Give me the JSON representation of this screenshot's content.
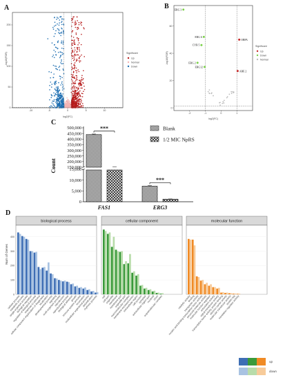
{
  "chart_data": [
    {
      "panel": "A",
      "type": "scatter",
      "xlabel": "log2(FC)",
      "ylabel": "-log10(FDR)",
      "xlim": [
        -15,
        15
      ],
      "ylim": [
        0,
        230
      ],
      "xticks": [
        "-10",
        "-5",
        "0",
        "5",
        "10"
      ],
      "yticks": [
        "0",
        "50",
        "100",
        "150",
        "200"
      ],
      "vlines": [
        -1,
        1
      ],
      "hline": 1.3,
      "legend": {
        "title": "Significant",
        "entries": [
          "Up",
          "Normal",
          "Down"
        ],
        "position": "right"
      },
      "colors": {
        "Up": "#b71c1c",
        "Normal": "#f4b4b4",
        "Down": "#1f6fb2"
      }
    },
    {
      "panel": "B",
      "type": "scatter",
      "xlabel": "log2(FC)",
      "ylabel": "-log10(FDR)",
      "xlim": [
        -3,
        2
      ],
      "ylim": [
        -2,
        75
      ],
      "xticks": [
        "-2",
        "-1",
        "0",
        "1"
      ],
      "yticks": [
        "0",
        "20",
        "40",
        "60"
      ],
      "vlines": [
        -1,
        1
      ],
      "hline": 1.3,
      "legend": {
        "title": "Significant",
        "entries": [
          "Up",
          "Down",
          "Normal"
        ],
        "position": "right"
      },
      "colors": {
        "Up": "#c62828",
        "Down": "#7bd14a",
        "Normal": "#bdbdbd"
      },
      "points": [
        {
          "label": "ERG 3",
          "x": -2.4,
          "y": 72,
          "group": "Down"
        },
        {
          "label": "ERG 6",
          "x": -1.1,
          "y": 52,
          "group": "Down"
        },
        {
          "label": "CYB 5",
          "x": -1.25,
          "y": 46,
          "group": "Down"
        },
        {
          "label": "ERG 2",
          "x": -1.5,
          "y": 33,
          "group": "Down"
        },
        {
          "label": "ERG12",
          "x": -1.05,
          "y": 30,
          "group": "Down"
        },
        {
          "label": "OBPA",
          "x": 1.15,
          "y": 50,
          "group": "Up"
        },
        {
          "label": "ARE 2",
          "x": 1.05,
          "y": 27,
          "group": "Up"
        }
      ]
    },
    {
      "panel": "C",
      "type": "bar",
      "ylabel": "Count",
      "categories": [
        "FAS1",
        "ERG3"
      ],
      "series": [
        {
          "name": "Blank",
          "values": [
            440000,
            7200
          ],
          "error": [
            5000,
            300
          ]
        },
        {
          "name": "1/2 MIC NpRS",
          "values": [
            150000,
            1200
          ],
          "error": [
            2000,
            100
          ]
        }
      ],
      "yticks_top": [
        "150,000",
        "200,000",
        "250,000",
        "300,000",
        "350,000",
        "400,000",
        "450,000",
        "500,000"
      ],
      "yticks_bottom": [
        "0",
        "5,000",
        "10,000",
        "15,000"
      ],
      "significance": [
        "***",
        "***"
      ]
    },
    {
      "panel": "D",
      "type": "bar",
      "ylabel": "Num of Genes",
      "yticks": [
        "0",
        "100",
        "200",
        "300",
        "400"
      ],
      "ylim": [
        0,
        480
      ],
      "legend": {
        "entries": [
          "up",
          "down"
        ],
        "position": "bottom-right"
      },
      "facets": [
        {
          "title": "biological process",
          "color_up": "#3e6eb5",
          "color_down": "#a9c3e2",
          "categories": [
            "cellular process",
            "metabolic process",
            "single-organism process",
            "biological regulation",
            "regulation of biological process",
            "response to stimulus",
            "cellular component organization or biogenesis",
            "localization",
            "developmental process",
            "signaling",
            "multi-organism process",
            "reproduction",
            "reproductive process",
            "biological adhesion",
            "growth",
            "immune system process",
            "locomotion",
            "multicellular organismal process",
            "detoxification",
            "rhythmic process"
          ],
          "up": [
            430,
            405,
            385,
            300,
            290,
            190,
            185,
            165,
            145,
            112,
            100,
            90,
            88,
            70,
            55,
            45,
            40,
            30,
            20,
            12
          ],
          "down": [
            420,
            400,
            380,
            300,
            295,
            175,
            190,
            222,
            140,
            110,
            95,
            95,
            85,
            75,
            60,
            50,
            48,
            35,
            24,
            15
          ]
        },
        {
          "title": "cellular component",
          "color_up": "#3a9a3a",
          "color_down": "#b8dcaa",
          "categories": [
            "cell",
            "cell part",
            "organelle",
            "membrane",
            "membrane part",
            "organelle part",
            "macromolecular complex",
            "membrane-enclosed lumen",
            "extracellular region",
            "cell junction",
            "symplast",
            "extracellular region part",
            "nucleoid",
            "virion",
            "supramolecular complex"
          ],
          "up": [
            450,
            420,
            330,
            310,
            295,
            210,
            215,
            150,
            130,
            60,
            40,
            30,
            20,
            10,
            5
          ],
          "down": [
            440,
            430,
            400,
            300,
            300,
            230,
            280,
            160,
            140,
            65,
            45,
            35,
            25,
            12,
            8
          ]
        },
        {
          "title": "molecular function",
          "color_up": "#f08a24",
          "color_down": "#f7cb9a",
          "categories": [
            "catalytic activity",
            "binding",
            "transporter activity",
            "nucleic acid binding transcription factor activity",
            "structural molecule activity",
            "molecular function regulator",
            "antioxidant activity",
            "signal transducer activity",
            "transcription factor activity, protein binding",
            "electron carrier activity",
            "molecular transducer activity",
            "protein tag",
            "translation regulator activity"
          ],
          "up": [
            385,
            380,
            125,
            95,
            70,
            60,
            50,
            40,
            12,
            10,
            8,
            5,
            4
          ],
          "down": [
            380,
            340,
            120,
            100,
            80,
            70,
            50,
            45,
            15,
            12,
            8,
            6,
            5
          ]
        }
      ]
    }
  ],
  "labels": {
    "panel_a": "A",
    "panel_b": "B",
    "panel_c": "C",
    "panel_d": "D"
  }
}
